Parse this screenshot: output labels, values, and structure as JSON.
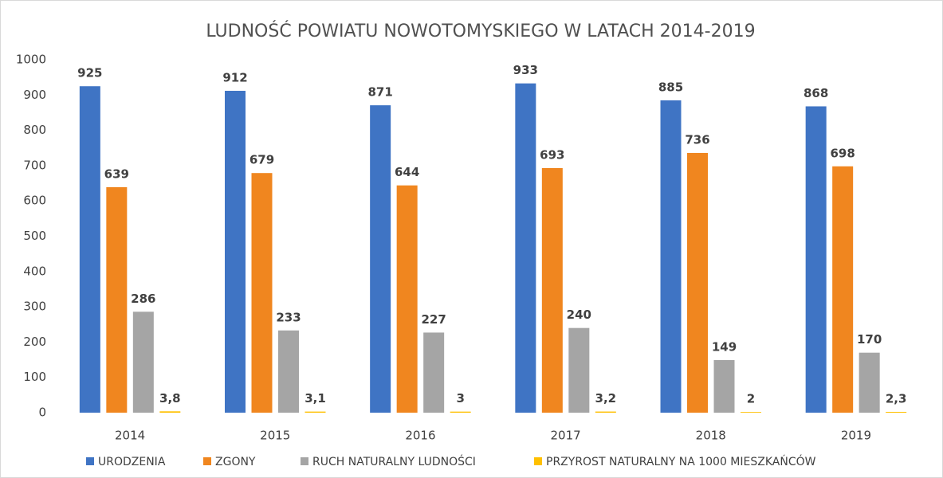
{
  "chart_data": {
    "type": "bar",
    "title": "LUDNOŚĆ POWIATU NOWOTOMYSKIEGO W LATACH 2014-2019",
    "categories": [
      "2014",
      "2015",
      "2016",
      "2017",
      "2018",
      "2019"
    ],
    "series": [
      {
        "name": "URODZENIA",
        "color": "#3f74c4",
        "values": [
          925,
          912,
          871,
          933,
          885,
          868
        ]
      },
      {
        "name": "ZGONY",
        "color": "#f0861f",
        "values": [
          639,
          679,
          644,
          693,
          736,
          698
        ]
      },
      {
        "name": "RUCH NATURALNY LUDNOŚCI",
        "color": "#a5a5a5",
        "values": [
          286,
          233,
          227,
          240,
          149,
          170
        ]
      },
      {
        "name": "PRZYROST NATURALNY NA 1000 MIESZKAŃCÓW",
        "color": "#ffc000",
        "values": [
          3.8,
          3.1,
          3,
          3.2,
          2,
          2.3
        ],
        "value_labels": [
          "3,8",
          "3,1",
          "3",
          "3,2",
          "2",
          "2,3"
        ]
      }
    ],
    "ylim": [
      0,
      1000
    ],
    "yticks": [
      0,
      100,
      200,
      300,
      400,
      500,
      600,
      700,
      800,
      900,
      1000
    ],
    "grid": false,
    "legend": "bottom"
  }
}
